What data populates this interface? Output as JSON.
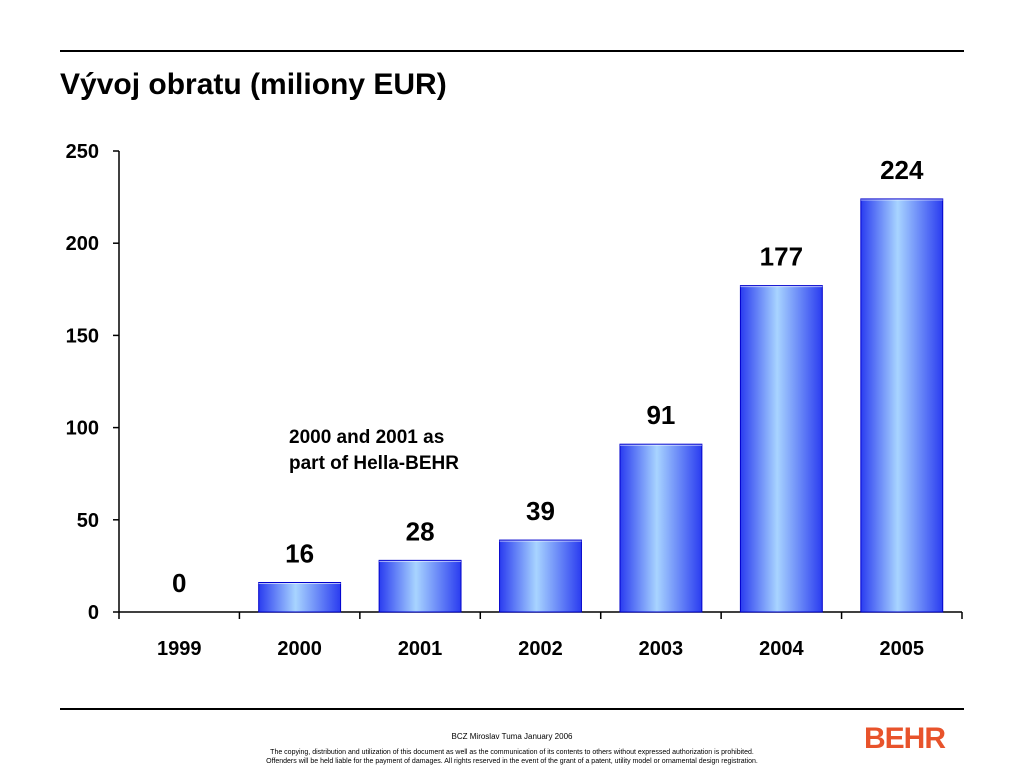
{
  "slide": {
    "title": "Vývoj obratu (miliony EUR)"
  },
  "chart_data": {
    "type": "bar",
    "title": "Vývoj obratu (miliony EUR)",
    "categories": [
      "1999",
      "2000",
      "2001",
      "2002",
      "2003",
      "2004",
      "2005"
    ],
    "values": [
      0,
      16,
      28,
      39,
      91,
      177,
      224
    ],
    "data_labels": [
      "0",
      "16",
      "28",
      "39",
      "91",
      "177",
      "224"
    ],
    "ylim": [
      0,
      250
    ],
    "yticks": [
      0,
      50,
      100,
      150,
      200,
      250
    ],
    "ytick_labels": [
      "0",
      "50",
      "100",
      "150",
      "200",
      "250"
    ],
    "xlabel": "",
    "ylabel": "",
    "grid": false,
    "legend": "none",
    "annotation": [
      "2000 and 2001 as",
      "part of Hella-BEHR"
    ],
    "colors": {
      "bar_edge": "#0000cc",
      "bar_dark": "#2a3cf0",
      "bar_light": "#a8d4ff",
      "axis": "#000000"
    }
  },
  "footer": {
    "author": "BCZ Miroslav Tuma January 2006",
    "notice_line1": "The copying, distribution and utilization of this document as well as the communication of its contents to others without expressed authorization is prohibited.",
    "notice_line2": "Offenders will be held liable for the payment of damages. All rights reserved in the event of the grant of a patent, utility model or ornamental design registration."
  },
  "logo": {
    "text": "BEHR",
    "color": "#e8532b"
  }
}
